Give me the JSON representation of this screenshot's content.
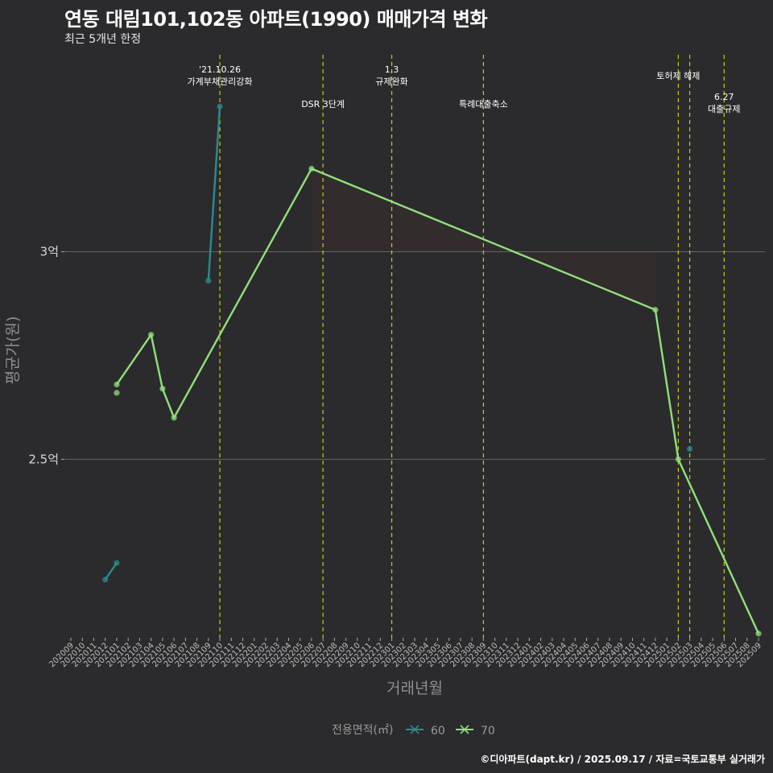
{
  "header": {
    "title": "연동 대림101,102동 아파트(1990) 매매가격 변화",
    "subtitle": "최근 5개년 한정"
  },
  "caption": "©디아파트(dapt.kr) / 2025.09.17 / 자료=국토교통부 실거래가",
  "colors": {
    "background": "#2b2b2d",
    "gridline": "#666666",
    "vline": "#cccc00",
    "series_60": "#2b8c8c",
    "series_70": "#90e07a",
    "area": "#3a2e2e"
  },
  "chart_data": {
    "type": "line",
    "title": "연동 대림101,102동 아파트(1990) 매매가격 변화",
    "subtitle": "최근 5개년 한정",
    "xlabel": "거래년월",
    "ylabel": "평균가(원)",
    "categories": [
      "202009",
      "202010",
      "202011",
      "202012",
      "202101",
      "202102",
      "202103",
      "202104",
      "202105",
      "202106",
      "202107",
      "202108",
      "202109",
      "202110",
      "202111",
      "202112",
      "202201",
      "202202",
      "202203",
      "202204",
      "202205",
      "202206",
      "202207",
      "202208",
      "202209",
      "202210",
      "202211",
      "202212",
      "202301",
      "202302",
      "202303",
      "202304",
      "202305",
      "202306",
      "202307",
      "202308",
      "202309",
      "202310",
      "202311",
      "202312",
      "202401",
      "202402",
      "202403",
      "202404",
      "202405",
      "202406",
      "202407",
      "202408",
      "202409",
      "202410",
      "202411",
      "202412",
      "202501",
      "202502",
      "202503",
      "202504",
      "202505",
      "202506",
      "202507",
      "202508",
      "202509"
    ],
    "ylim": [
      2.07,
      3.49
    ],
    "yticks": [
      {
        "value": 2.5,
        "label": "2.5억"
      },
      {
        "value": 3.0,
        "label": "3억"
      }
    ],
    "legend": {
      "title": "전용면적(㎡)",
      "position": "bottom",
      "entries": [
        "60",
        "70"
      ]
    },
    "series": [
      {
        "name": "60",
        "color": "#2b8c8c",
        "segments": [
          [
            {
              "x": "202012",
              "y": 2.21
            },
            {
              "x": "202101",
              "y": 2.25
            }
          ],
          [
            {
              "x": "202109",
              "y": 2.93
            },
            {
              "x": "202110",
              "y": 3.35
            }
          ]
        ],
        "points": [
          {
            "x": "202012",
            "y": 2.21
          },
          {
            "x": "202101",
            "y": 2.25
          },
          {
            "x": "202109",
            "y": 2.93
          },
          {
            "x": "202110",
            "y": 3.35
          },
          {
            "x": "202503",
            "y": 2.525
          }
        ]
      },
      {
        "name": "70",
        "color": "#90e07a",
        "segments": [
          [
            {
              "x": "202101",
              "y": 2.68
            },
            {
              "x": "202104",
              "y": 2.8
            },
            {
              "x": "202105",
              "y": 2.67
            },
            {
              "x": "202106",
              "y": 2.6
            },
            {
              "x": "202206",
              "y": 3.2
            },
            {
              "x": "202412",
              "y": 2.86
            },
            {
              "x": "202502",
              "y": 2.5
            },
            {
              "x": "202509",
              "y": 2.08
            }
          ]
        ],
        "points": [
          {
            "x": "202101",
            "y": 2.68
          },
          {
            "x": "202101",
            "y": 2.66
          },
          {
            "x": "202104",
            "y": 2.8
          },
          {
            "x": "202105",
            "y": 2.67
          },
          {
            "x": "202106",
            "y": 2.6
          },
          {
            "x": "202206",
            "y": 3.2
          },
          {
            "x": "202412",
            "y": 2.86
          },
          {
            "x": "202502",
            "y": 2.5
          },
          {
            "x": "202509",
            "y": 2.08
          }
        ]
      }
    ],
    "events": [
      {
        "x": "202110",
        "lines": [
          "'21.10.26",
          "가계부채관리강화"
        ],
        "level": 0
      },
      {
        "x": "202207",
        "lines": [
          "DSR 3단계"
        ],
        "level": 2
      },
      {
        "x": "202301",
        "lines": [
          "1.3",
          "규제완화"
        ],
        "level": 0
      },
      {
        "x": "202309",
        "lines": [
          "특례대출축소"
        ],
        "level": 2
      },
      {
        "x": "202502",
        "lines": [
          "토허제 해제"
        ],
        "level": 1
      },
      {
        "x": "202503",
        "lines": [],
        "level": 1
      },
      {
        "x": "202506",
        "lines": [
          "6.27",
          "대출규제"
        ],
        "level": 3
      }
    ]
  }
}
